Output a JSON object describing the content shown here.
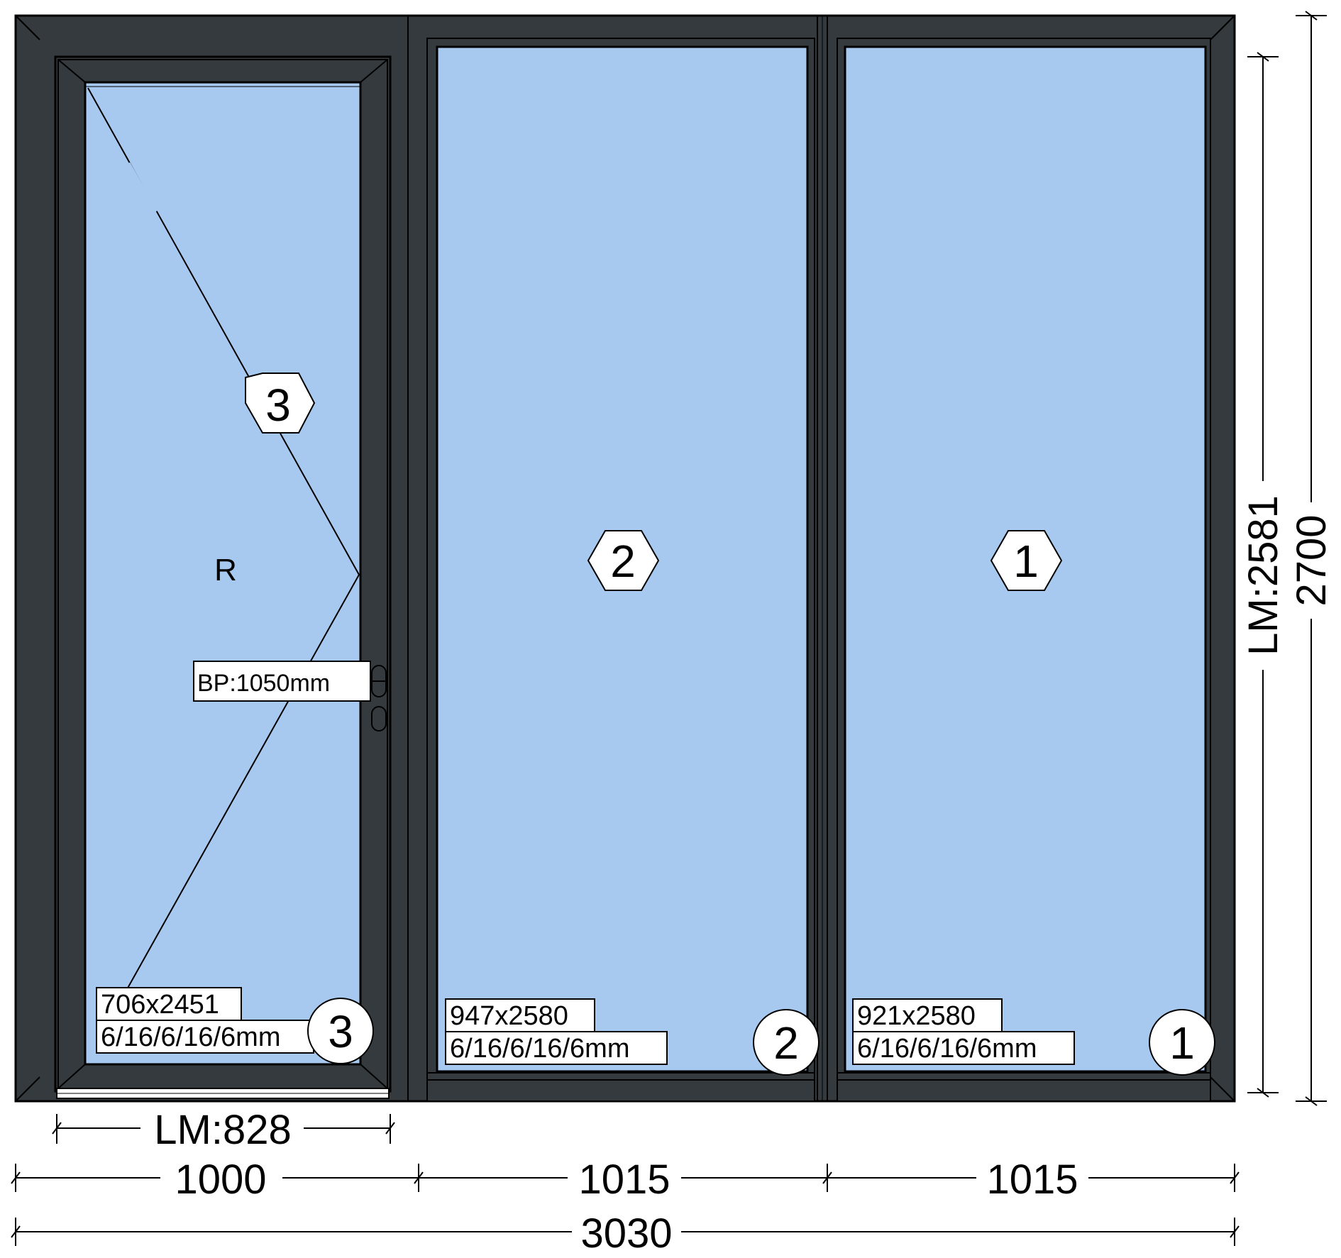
{
  "colors": {
    "frame": "#343a3d",
    "glass": "#a7c9ef",
    "line": "#000000",
    "background": "#ffffff"
  },
  "panels": [
    {
      "id": "3",
      "type": "door",
      "opening_side": "R",
      "glass_size": "706x2451",
      "glass_spec": "6/16/6/16/6mm",
      "handle_label": "BP:1050mm"
    },
    {
      "id": "2",
      "type": "fixed",
      "glass_size": "947x2580",
      "glass_spec": "6/16/6/16/6mm"
    },
    {
      "id": "1",
      "type": "fixed",
      "glass_size": "921x2580",
      "glass_spec": "6/16/6/16/6mm"
    }
  ],
  "dimensions": {
    "door_light": "LM:828",
    "widths": [
      "1000",
      "1015",
      "1015"
    ],
    "total_width": "3030",
    "light_height": "LM:2581",
    "total_height": "2700"
  }
}
